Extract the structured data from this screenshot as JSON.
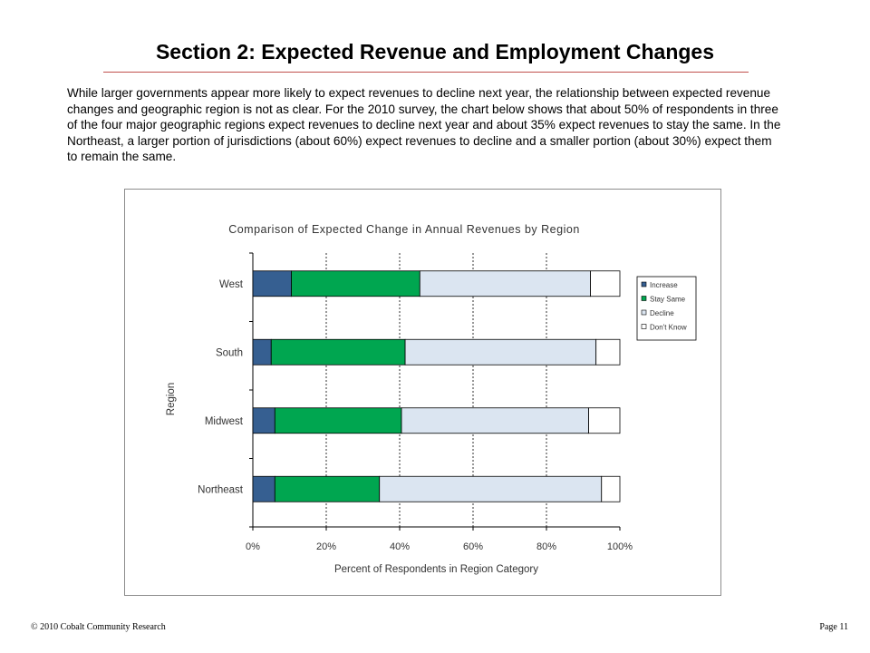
{
  "page": {
    "title": "Section 2: Expected Revenue and Employment Changes",
    "intro": "While larger governments appear more likely to expect revenues to decline next year, the relationship between expected revenue changes and geographic region is not as clear. For the 2010 survey, the chart below shows that about 50% of respondents in three of the four major geographic regions expect revenues to decline next year and about 35% expect revenues to stay the same.  In the Northeast, a larger portion of jurisdictions (about  60%) expect revenues to decline and a smaller portion (about 30%) expect them to remain the same.",
    "footer_left": "© 2010 Cobalt Community Research",
    "footer_right": "Page 11"
  },
  "chart_data": {
    "type": "bar",
    "orientation": "horizontal",
    "stacked": true,
    "title": "Comparison of Expected Change in Annual Revenues by Region",
    "xlabel": "Percent of Respondents in Region Category",
    "ylabel": "Region",
    "xlim": [
      0,
      100
    ],
    "x_ticks": [
      "0%",
      "20%",
      "40%",
      "60%",
      "80%",
      "100%"
    ],
    "categories": [
      "West",
      "South",
      "Midwest",
      "Northeast"
    ],
    "series": [
      {
        "name": "Increase",
        "color": "#365f91",
        "values": [
          10.5,
          5,
          6,
          6
        ]
      },
      {
        "name": "Stay Same",
        "color": "#00a650",
        "values": [
          35,
          36.5,
          34.5,
          28.5
        ]
      },
      {
        "name": "Decline",
        "color": "#dbe5f1",
        "values": [
          46.5,
          52,
          51,
          60.5
        ]
      },
      {
        "name": "Don't Know",
        "color": "#ffffff",
        "values": [
          8,
          6.5,
          8.5,
          5
        ]
      }
    ],
    "legend_position": "right",
    "grid": "vertical dashed"
  }
}
